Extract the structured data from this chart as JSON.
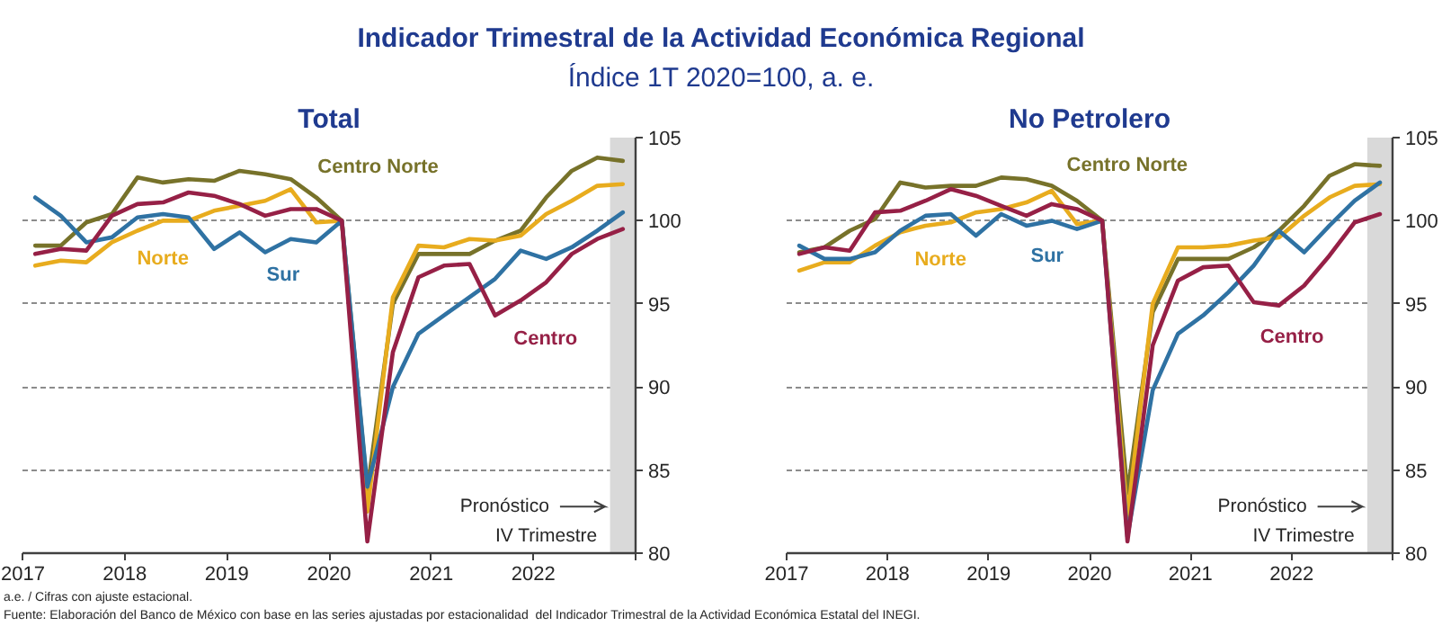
{
  "chart_data": [
    {
      "type": "other",
      "title": "Indicador Trimestral de la Actividad Económica Regional",
      "subtitle": "Índice 1T 2020=100, a. e.",
      "annotations": [
        "a.e. / Cifras con ajuste estacional.",
        "Fuente: Elaboración del Banco de México con base en las series ajustadas por estacionalidad  del Indicador Trimestral de la Actividad Económica Estatal del INEGI."
      ]
    },
    {
      "type": "line",
      "title": "Total",
      "x": [
        2017.125,
        2017.375,
        2017.625,
        2017.875,
        2018.125,
        2018.375,
        2018.625,
        2018.875,
        2019.125,
        2019.375,
        2019.625,
        2019.875,
        2020.125,
        2020.375,
        2020.625,
        2020.875,
        2021.125,
        2021.375,
        2021.625,
        2021.875,
        2022.125,
        2022.375,
        2022.625,
        2022.875
      ],
      "xlim": [
        2017,
        2023
      ],
      "xticks": [
        2017,
        2018,
        2019,
        2020,
        2021,
        2022,
        {
          "value": 2023,
          "label": null
        }
      ],
      "ylim": [
        80,
        105
      ],
      "yticks": [
        80,
        85,
        90,
        95,
        100,
        105
      ],
      "grid": "y",
      "bands": [
        {
          "axis": "x",
          "from": 2022.75,
          "to": 2023,
          "color": "#d9d9d9"
        }
      ],
      "annotations": [
        {
          "text": "Pronóstico",
          "x": 2022.7,
          "y": 82.8
        },
        "IV Trimestre"
      ],
      "series": [
        {
          "name": "Centro Norte",
          "color": "#77722a",
          "values": [
            98.5,
            98.5,
            99.9,
            100.4,
            102.6,
            102.3,
            102.5,
            102.4,
            103.0,
            102.8,
            102.5,
            101.4,
            100.0,
            83.8,
            95.0,
            98.0,
            98.0,
            98.0,
            98.8,
            99.4,
            101.4,
            103.0,
            103.8,
            103.6
          ]
        },
        {
          "name": "Norte",
          "color": "#e8ac1e",
          "values": [
            97.3,
            97.6,
            97.5,
            98.7,
            99.4,
            100.0,
            100.0,
            100.6,
            100.9,
            101.2,
            101.9,
            99.9,
            100.0,
            82.5,
            95.4,
            98.5,
            98.4,
            98.9,
            98.8,
            99.1,
            100.4,
            101.2,
            102.1,
            102.2
          ]
        },
        {
          "name": "Sur",
          "color": "#2f72a3",
          "values": [
            101.4,
            100.3,
            98.7,
            99.0,
            100.2,
            100.4,
            100.2,
            98.3,
            99.3,
            98.1,
            98.9,
            98.7,
            100.0,
            84.0,
            90.0,
            93.2,
            94.3,
            95.4,
            96.5,
            98.2,
            97.7,
            98.4,
            99.4,
            100.5
          ]
        },
        {
          "name": "Centro",
          "color": "#962046",
          "values": [
            98.0,
            98.3,
            98.2,
            100.3,
            101.0,
            101.1,
            101.7,
            101.5,
            101.0,
            100.3,
            100.7,
            100.7,
            100.0,
            80.7,
            92.1,
            96.6,
            97.3,
            97.4,
            94.3,
            95.2,
            96.3,
            98.0,
            98.9,
            99.5
          ]
        }
      ]
    },
    {
      "type": "line",
      "title": "No Petrolero",
      "x": [
        2017.125,
        2017.375,
        2017.625,
        2017.875,
        2018.125,
        2018.375,
        2018.625,
        2018.875,
        2019.125,
        2019.375,
        2019.625,
        2019.875,
        2020.125,
        2020.375,
        2020.625,
        2020.875,
        2021.125,
        2021.375,
        2021.625,
        2021.875,
        2022.125,
        2022.375,
        2022.625,
        2022.875
      ],
      "xlim": [
        2017,
        2023
      ],
      "xticks": [
        2017,
        2018,
        2019,
        2020,
        2021,
        2022,
        {
          "value": 2023,
          "label": null
        }
      ],
      "ylim": [
        80,
        105
      ],
      "yticks": [
        80,
        85,
        90,
        95,
        100,
        105
      ],
      "grid": "y",
      "bands": [
        {
          "axis": "x",
          "from": 2022.75,
          "to": 2023,
          "color": "#d9d9d9"
        }
      ],
      "annotations": [
        {
          "text": "Pronóstico",
          "x": 2022.7,
          "y": 82.8
        },
        "IV Trimestre"
      ],
      "series": [
        {
          "name": "Centro Norte",
          "color": "#77722a",
          "values": [
            98.1,
            98.4,
            99.4,
            100.1,
            102.3,
            102.0,
            102.1,
            102.1,
            102.6,
            102.5,
            102.1,
            101.2,
            100.0,
            83.6,
            94.5,
            97.7,
            97.7,
            97.7,
            98.4,
            99.4,
            100.9,
            102.7,
            103.4,
            103.3
          ]
        },
        {
          "name": "Norte",
          "color": "#e8ac1e",
          "values": [
            97.0,
            97.5,
            97.5,
            98.5,
            99.3,
            99.7,
            99.9,
            100.5,
            100.7,
            101.1,
            101.8,
            99.8,
            100.0,
            82.2,
            95.0,
            98.4,
            98.4,
            98.5,
            98.8,
            99.0,
            100.3,
            101.4,
            102.1,
            102.2
          ]
        },
        {
          "name": "Sur",
          "color": "#2f72a3",
          "values": [
            98.5,
            97.7,
            97.7,
            98.1,
            99.4,
            100.3,
            100.4,
            99.1,
            100.4,
            99.7,
            100.0,
            99.5,
            100.0,
            81.0,
            89.8,
            93.2,
            94.3,
            95.7,
            97.3,
            99.4,
            98.1,
            99.7,
            101.2,
            102.3
          ]
        },
        {
          "name": "Centro",
          "color": "#962046",
          "values": [
            98.0,
            98.4,
            98.2,
            100.5,
            100.6,
            101.2,
            101.9,
            101.5,
            100.9,
            100.3,
            101.0,
            100.7,
            100.0,
            80.7,
            92.5,
            96.4,
            97.2,
            97.3,
            95.1,
            94.9,
            96.1,
            97.9,
            99.9,
            100.4
          ]
        }
      ]
    }
  ]
}
